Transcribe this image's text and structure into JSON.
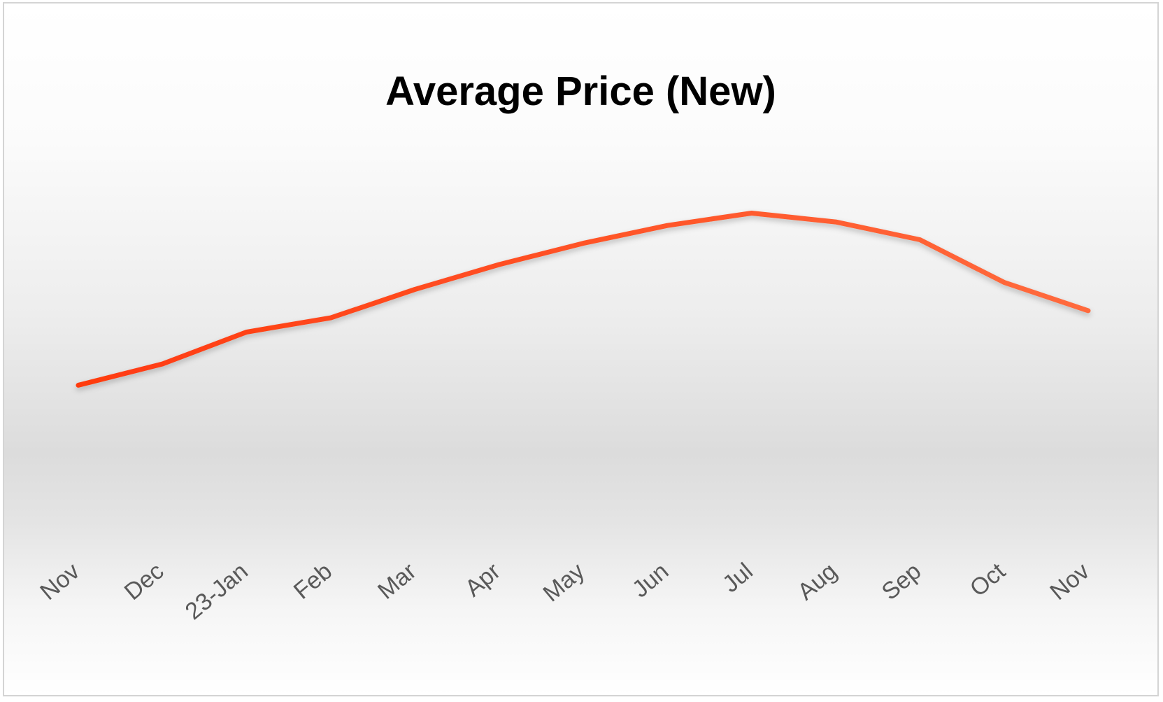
{
  "chart_data": {
    "type": "line",
    "title": "Average Price (New)",
    "xlabel": "",
    "ylabel": "",
    "categories": [
      "Nov",
      "Dec",
      "23-Jan",
      "Feb",
      "Mar",
      "Apr",
      "May",
      "Jun",
      "Jul",
      "Aug",
      "Sep",
      "Oct",
      "Nov"
    ],
    "series": [
      {
        "values": [
          71.0,
          71.6,
          72.5,
          72.9,
          73.7,
          74.4,
          75.0,
          75.5,
          75.85,
          75.6,
          75.1,
          73.9,
          73.1
        ]
      }
    ],
    "ylim": [
      66.0,
      80.0
    ],
    "grid": false,
    "legend": "none",
    "y_axis_labels_visible": false,
    "line_color_start": "#ff3b10",
    "line_color_end": "#ff6a3d"
  }
}
